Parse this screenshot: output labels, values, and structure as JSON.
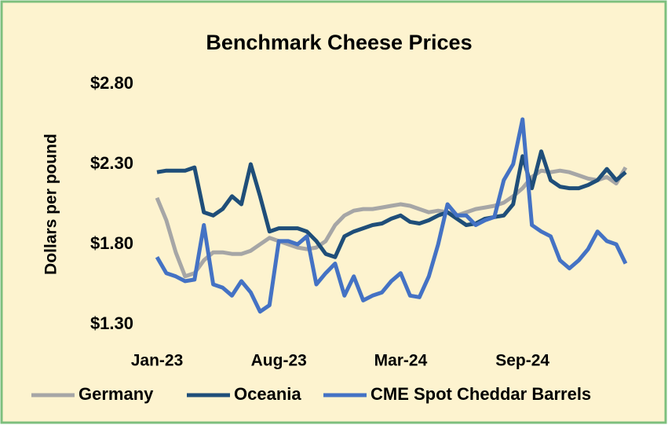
{
  "chart_data": {
    "type": "line",
    "title": "Benchmark Cheese Prices",
    "y_label": "Dollars per pound",
    "categories": [
      "Jan-23",
      null,
      null,
      null,
      null,
      null,
      null,
      null,
      null,
      null,
      null,
      null,
      null,
      "Aug-23",
      null,
      null,
      null,
      null,
      null,
      null,
      null,
      null,
      null,
      null,
      null,
      null,
      "Mar-24",
      null,
      null,
      null,
      null,
      null,
      null,
      null,
      null,
      null,
      null,
      null,
      null,
      "Sep-24",
      null,
      null,
      null,
      null,
      null,
      null,
      null,
      null,
      null,
      null,
      null
    ],
    "series": [
      {
        "name": "Germany",
        "color": "#a6a6a6",
        "values": [
          2.09,
          1.95,
          1.75,
          1.6,
          1.62,
          1.7,
          1.75,
          1.75,
          1.74,
          1.74,
          1.76,
          1.8,
          1.84,
          1.82,
          1.8,
          1.78,
          1.77,
          1.78,
          1.82,
          1.92,
          1.98,
          2.01,
          2.02,
          2.02,
          2.03,
          2.04,
          2.05,
          2.04,
          2.02,
          2.0,
          2.01,
          2.0,
          1.98,
          2.0,
          2.02,
          2.03,
          2.04,
          2.06,
          2.1,
          2.15,
          2.22,
          2.26,
          2.25,
          2.26,
          2.25,
          2.23,
          2.21,
          2.2,
          2.22,
          2.18,
          2.28
        ]
      },
      {
        "name": "Oceania",
        "color": "#1f4e79",
        "values": [
          2.25,
          2.26,
          2.26,
          2.26,
          2.28,
          2.0,
          1.98,
          2.02,
          2.1,
          2.05,
          2.3,
          2.1,
          1.88,
          1.9,
          1.9,
          1.9,
          1.88,
          1.82,
          1.74,
          1.72,
          1.85,
          1.88,
          1.9,
          1.92,
          1.93,
          1.96,
          1.98,
          1.94,
          1.93,
          1.95,
          1.98,
          2.0,
          1.96,
          1.92,
          1.93,
          1.96,
          1.97,
          1.98,
          2.05,
          2.35,
          2.15,
          2.38,
          2.2,
          2.16,
          2.15,
          2.15,
          2.17,
          2.2,
          2.27,
          2.2,
          2.25
        ]
      },
      {
        "name": "CME Spot Cheddar Barrels",
        "color": "#4472c4",
        "values": [
          1.72,
          1.62,
          1.6,
          1.57,
          1.58,
          1.92,
          1.55,
          1.53,
          1.48,
          1.57,
          1.5,
          1.38,
          1.42,
          1.82,
          1.82,
          1.8,
          1.85,
          1.55,
          1.62,
          1.68,
          1.48,
          1.6,
          1.45,
          1.48,
          1.5,
          1.57,
          1.62,
          1.48,
          1.47,
          1.6,
          1.8,
          2.05,
          1.98,
          1.98,
          1.92,
          1.95,
          1.97,
          2.2,
          2.3,
          2.58,
          1.92,
          1.88,
          1.85,
          1.7,
          1.65,
          1.7,
          1.77,
          1.88,
          1.82,
          1.8,
          1.68
        ]
      }
    ],
    "ylim": [
      1.3,
      2.8
    ],
    "yticks": [
      {
        "value": 1.3,
        "label": "$1.30"
      },
      {
        "value": 1.8,
        "label": "$1.80"
      },
      {
        "value": 2.3,
        "label": "$2.30"
      },
      {
        "value": 2.8,
        "label": "$2.80"
      }
    ],
    "grid": false,
    "legend": "bottom"
  }
}
